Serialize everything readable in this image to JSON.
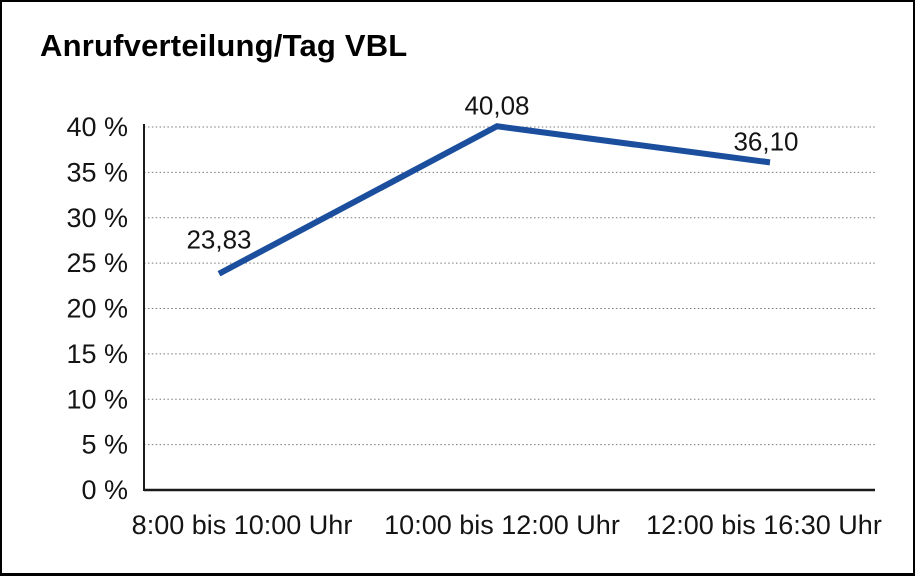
{
  "chart_data": {
    "type": "line",
    "title": "Anrufverteilung/Tag VBL",
    "categories": [
      "8:00 bis 10:00 Uhr",
      "10:00 bis 12:00 Uhr",
      "12:00 bis 16:30 Uhr"
    ],
    "values": [
      23.83,
      40.08,
      36.1
    ],
    "data_labels": [
      "23,83",
      "40,08",
      "36,10"
    ],
    "xlabel": "",
    "ylabel": "",
    "ylim": [
      0,
      40
    ],
    "ytick_step": 5,
    "ytick_labels": [
      "0 %",
      "5 %",
      "10 %",
      "15 %",
      "20 %",
      "25 %",
      "30 %",
      "35 %",
      "40 %"
    ],
    "grid": "horizontal-dotted",
    "legend": "none",
    "line_color": "#1B4F9E"
  },
  "colors": {
    "background": "#FFFFFF",
    "border": "#000000",
    "line": "#1B4F9E",
    "grid": "#7A7A7A",
    "axis": "#1A1A1A",
    "text": "#141414"
  }
}
